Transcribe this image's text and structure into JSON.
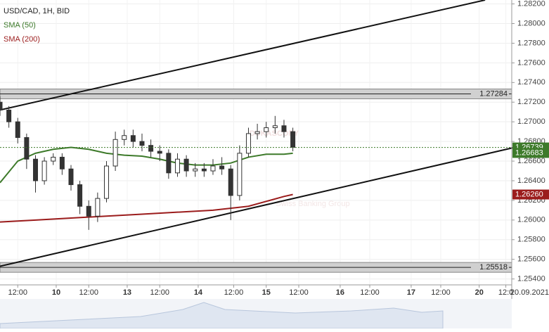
{
  "chart_data": {
    "type": "candlestick",
    "title": "USD/CAD, 1H, BID",
    "watermark": "DUKASCOPY",
    "watermark_sub": "Swiss Banking Group",
    "date_label": "20.09.2021",
    "xlim": [
      0,
      173
    ],
    "ylim": [
      1.2534,
      1.2824
    ],
    "yticks": [
      {
        "value": 1.254,
        "label": "1.25400"
      },
      {
        "value": 1.256,
        "label": "1.25600"
      },
      {
        "value": 1.258,
        "label": "1.25800"
      },
      {
        "value": 1.26,
        "label": "1.26000"
      },
      {
        "value": 1.262,
        "label": "1.26200"
      },
      {
        "value": 1.264,
        "label": "1.26400"
      },
      {
        "value": 1.266,
        "label": "1.26600"
      },
      {
        "value": 1.268,
        "label": "1.26800"
      },
      {
        "value": 1.27,
        "label": "1.27000"
      },
      {
        "value": 1.272,
        "label": "1.27200"
      },
      {
        "value": 1.274,
        "label": "1.27400"
      },
      {
        "value": 1.276,
        "label": "1.27600"
      },
      {
        "value": 1.278,
        "label": "1.27800"
      },
      {
        "value": 1.28,
        "label": "1.28000"
      },
      {
        "value": 1.282,
        "label": "1.28200"
      }
    ],
    "xticks": [
      {
        "value": 6,
        "label": "12:00"
      },
      {
        "value": 19,
        "label": "10"
      },
      {
        "value": 30,
        "label": "12:00"
      },
      {
        "value": 43,
        "label": "13"
      },
      {
        "value": 54,
        "label": "12:00"
      },
      {
        "value": 67,
        "label": "14"
      },
      {
        "value": 79,
        "label": "12:00"
      },
      {
        "value": 90,
        "label": "15"
      },
      {
        "value": 101,
        "label": "12:00"
      },
      {
        "value": 115,
        "label": "16"
      },
      {
        "value": 125,
        "label": "12:00"
      },
      {
        "value": 139,
        "label": "17"
      },
      {
        "value": 149,
        "label": "12:00"
      },
      {
        "value": 162,
        "label": "20"
      },
      {
        "value": 171,
        "label": "12:0"
      }
    ],
    "grid": true,
    "up_color": "#ffffff",
    "down_color": "#333333",
    "candles": {
      "x": [
        0,
        3,
        6,
        9,
        12,
        15,
        18,
        21,
        24,
        27,
        30,
        33,
        36,
        39,
        42,
        45,
        48,
        51,
        54,
        57,
        60,
        63,
        66,
        69,
        72,
        75,
        78,
        81,
        84,
        87,
        90,
        93,
        96,
        99
      ],
      "open": [
        1.272,
        1.2712,
        1.27,
        1.2684,
        1.2662,
        1.264,
        1.266,
        1.2664,
        1.2652,
        1.2636,
        1.2614,
        1.2604,
        1.2622,
        1.2655,
        1.2682,
        1.2686,
        1.268,
        1.2676,
        1.267,
        1.2668,
        1.2648,
        1.2662,
        1.265,
        1.2652,
        1.265,
        1.2655,
        1.2652,
        1.2625,
        1.2668,
        1.2688,
        1.269,
        1.2694,
        1.2696,
        1.269
      ],
      "high": [
        1.2726,
        1.2716,
        1.2704,
        1.2688,
        1.2666,
        1.2664,
        1.2668,
        1.2668,
        1.2656,
        1.264,
        1.262,
        1.2628,
        1.266,
        1.269,
        1.2692,
        1.2692,
        1.2688,
        1.2682,
        1.2676,
        1.2672,
        1.2668,
        1.2666,
        1.2658,
        1.2658,
        1.2662,
        1.2664,
        1.2656,
        1.2676,
        1.2694,
        1.2698,
        1.27,
        1.2706,
        1.2702,
        1.2694
      ],
      "low": [
        1.2706,
        1.2694,
        1.2678,
        1.2652,
        1.2628,
        1.2636,
        1.2656,
        1.2646,
        1.263,
        1.2606,
        1.259,
        1.2598,
        1.2618,
        1.265,
        1.2676,
        1.2674,
        1.267,
        1.2664,
        1.266,
        1.2642,
        1.2644,
        1.2644,
        1.2644,
        1.2644,
        1.2646,
        1.2646,
        1.26,
        1.262,
        1.2664,
        1.2682,
        1.2684,
        1.2688,
        1.2684,
        1.267
      ],
      "close": [
        1.2712,
        1.27,
        1.2684,
        1.2662,
        1.264,
        1.266,
        1.2664,
        1.2652,
        1.2636,
        1.2614,
        1.2604,
        1.2622,
        1.2655,
        1.2682,
        1.2686,
        1.268,
        1.2676,
        1.267,
        1.2668,
        1.2648,
        1.2662,
        1.265,
        1.2652,
        1.265,
        1.2655,
        1.2652,
        1.2625,
        1.2668,
        1.2688,
        1.269,
        1.2694,
        1.2696,
        1.269,
        1.2674
      ]
    },
    "series": [
      {
        "name": "SMA (50)",
        "color": "#3d7a2a",
        "x": [
          0,
          6,
          12,
          18,
          24,
          30,
          36,
          42,
          48,
          54,
          60,
          66,
          72,
          78,
          84,
          90,
          96,
          99
        ],
        "values": [
          1.2638,
          1.266,
          1.2668,
          1.2672,
          1.2674,
          1.2672,
          1.2668,
          1.2666,
          1.2665,
          1.2662,
          1.2658,
          1.2656,
          1.2656,
          1.2658,
          1.2664,
          1.2667,
          1.2667,
          1.2668
        ]
      },
      {
        "name": "SMA (200)",
        "color": "#9b1c1c",
        "x": [
          0,
          12,
          24,
          36,
          48,
          60,
          72,
          84,
          96,
          99
        ],
        "values": [
          1.2598,
          1.26,
          1.2602,
          1.2604,
          1.2606,
          1.2608,
          1.261,
          1.2614,
          1.2624,
          1.2626
        ]
      }
    ],
    "trendlines": [
      {
        "x": [
          0,
          164
        ],
        "values": [
          1.2712,
          1.2824
        ]
      },
      {
        "x": [
          0,
          174
        ],
        "values": [
          1.2553,
          1.2674
        ]
      }
    ],
    "levels": [
      {
        "value": 1.27284,
        "label": "1.27284"
      },
      {
        "value": 1.25518,
        "label": "1.25518"
      }
    ],
    "price_labels": [
      {
        "value": 1.26739,
        "label": "1.26739",
        "color": "#3d7a2a"
      },
      {
        "value": 1.26683,
        "label": "1.26683",
        "color": "#3d7a2a"
      },
      {
        "value": 1.2626,
        "label": "1.26260",
        "color": "#9b1c1c"
      }
    ]
  }
}
